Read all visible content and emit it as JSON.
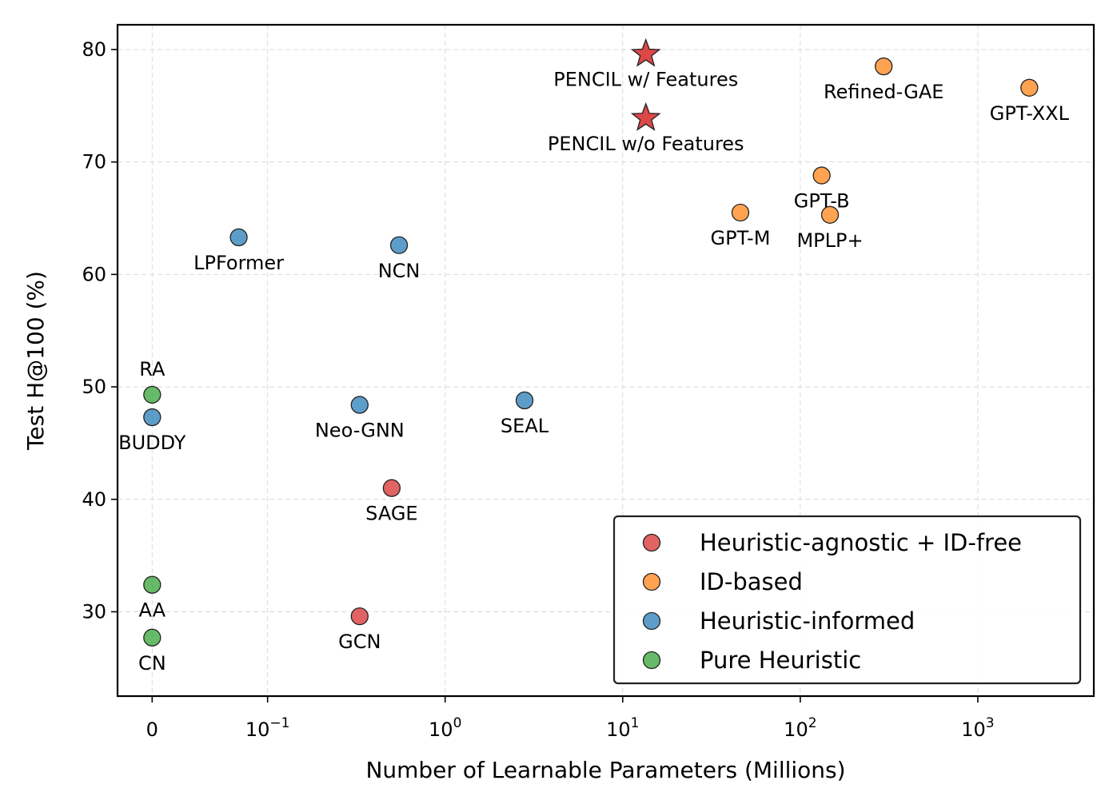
{
  "chart_data": {
    "type": "scatter",
    "title": "",
    "xlabel": "Number of Learnable Parameters (Millions)",
    "ylabel": "Test H@100 (%)",
    "x_scale": "symlog",
    "xlim": [
      -0.03,
      4500
    ],
    "ylim": [
      22.5,
      82.2
    ],
    "x_ticks": [
      {
        "value": 0,
        "label": "0",
        "base": "",
        "exp": ""
      },
      {
        "value": 0.1,
        "label": "",
        "base": "10",
        "exp": "−1"
      },
      {
        "value": 1,
        "label": "",
        "base": "10",
        "exp": "0"
      },
      {
        "value": 10,
        "label": "",
        "base": "10",
        "exp": "1"
      },
      {
        "value": 100,
        "label": "",
        "base": "10",
        "exp": "2"
      },
      {
        "value": 1000,
        "label": "",
        "base": "10",
        "exp": "3"
      }
    ],
    "y_ticks": [
      30,
      40,
      50,
      60,
      70,
      80
    ],
    "grid": true,
    "legend_position": "bottom-right",
    "series": [
      {
        "name": "Heuristic-agnostic + ID-free",
        "color": "#d62728",
        "points": [
          {
            "label": "PENCIL w/ Features",
            "x": 13.5,
            "y": 79.6,
            "marker": "star",
            "label_pos": "below"
          },
          {
            "label": "PENCIL w/o Features",
            "x": 13.5,
            "y": 73.9,
            "marker": "star",
            "label_pos": "below"
          },
          {
            "label": "SAGE",
            "x": 0.5,
            "y": 41.0,
            "marker": "circle",
            "label_pos": "below"
          },
          {
            "label": "GCN",
            "x": 0.33,
            "y": 29.6,
            "marker": "circle",
            "label_pos": "below"
          }
        ]
      },
      {
        "name": "ID-based",
        "color": "#ff7f0e",
        "points": [
          {
            "label": "Refined-GAE",
            "x": 295,
            "y": 78.5,
            "marker": "circle",
            "label_pos": "below"
          },
          {
            "label": "GPT-XXL",
            "x": 1950,
            "y": 76.6,
            "marker": "circle",
            "label_pos": "below"
          },
          {
            "label": "GPT-B",
            "x": 132,
            "y": 68.8,
            "marker": "circle",
            "label_pos": "below"
          },
          {
            "label": "GPT-M",
            "x": 46,
            "y": 65.5,
            "marker": "circle",
            "label_pos": "below"
          },
          {
            "label": "MPLP+",
            "x": 147,
            "y": 65.3,
            "marker": "circle",
            "label_pos": "below"
          }
        ]
      },
      {
        "name": "Heuristic-informed",
        "color": "#1f77b4",
        "points": [
          {
            "label": "LPFormer",
            "x": 0.075,
            "y": 63.3,
            "marker": "circle",
            "label_pos": "below"
          },
          {
            "label": "NCN",
            "x": 0.55,
            "y": 62.6,
            "marker": "circle",
            "label_pos": "below"
          },
          {
            "label": "Neo-GNN",
            "x": 0.33,
            "y": 48.4,
            "marker": "circle",
            "label_pos": "below"
          },
          {
            "label": "SEAL",
            "x": 2.8,
            "y": 48.8,
            "marker": "circle",
            "label_pos": "below"
          },
          {
            "label": "BUDDY",
            "x": 0,
            "y": 47.3,
            "marker": "circle",
            "label_pos": "below"
          }
        ]
      },
      {
        "name": "Pure Heuristic",
        "color": "#2ca02c",
        "points": [
          {
            "label": "RA",
            "x": 0,
            "y": 49.3,
            "marker": "circle",
            "label_pos": "above"
          },
          {
            "label": "AA",
            "x": 0,
            "y": 32.4,
            "marker": "circle",
            "label_pos": "below"
          },
          {
            "label": "CN",
            "x": 0,
            "y": 27.7,
            "marker": "circle",
            "label_pos": "below"
          }
        ]
      }
    ]
  }
}
